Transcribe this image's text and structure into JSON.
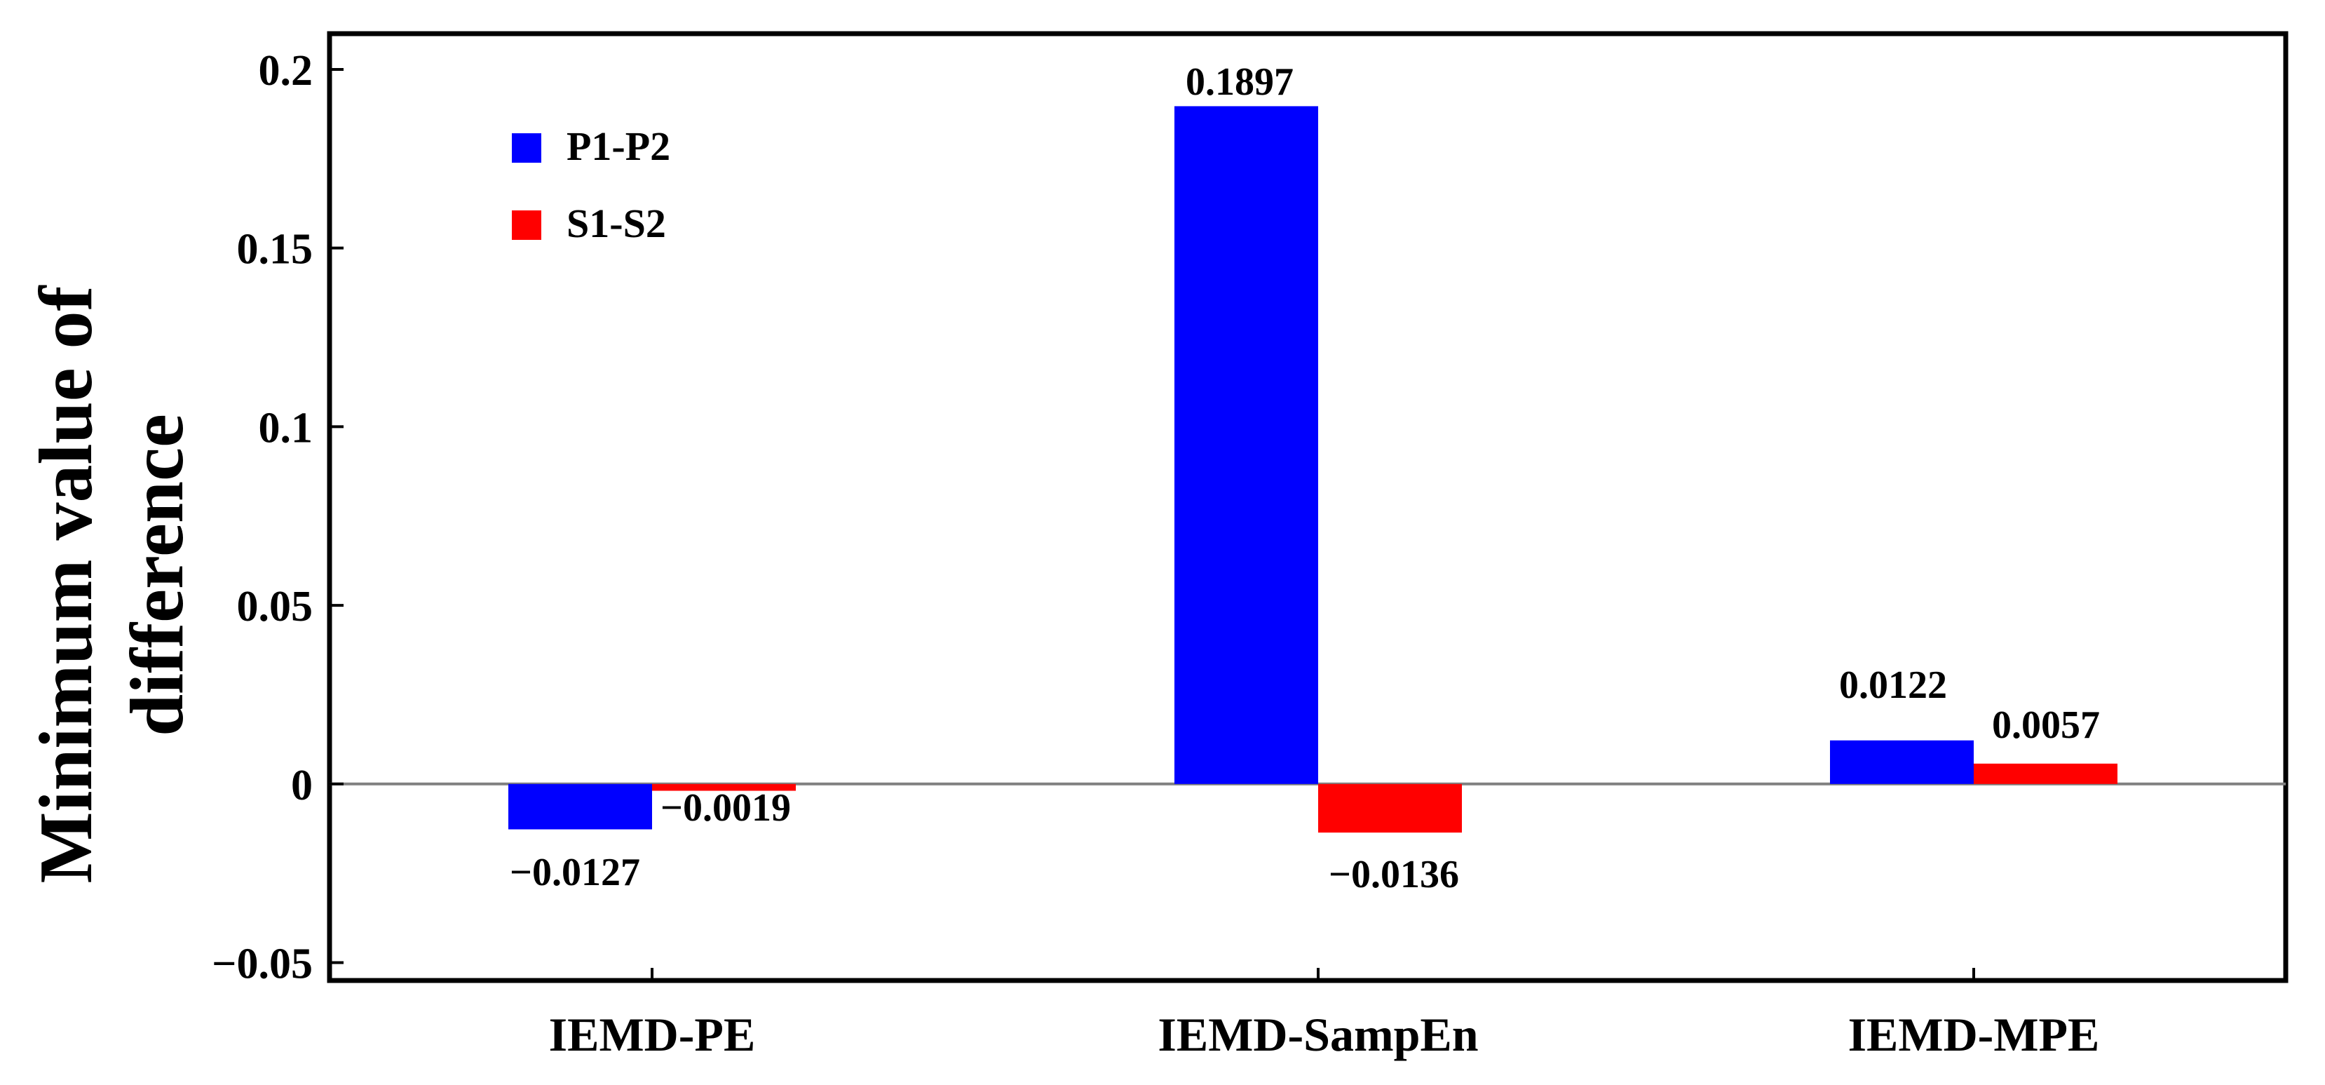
{
  "chart_data": {
    "type": "bar",
    "title": "",
    "xlabel": "",
    "ylabel": "Minimum value of difference",
    "ylabel_lines": [
      "Minimum value of",
      "difference"
    ],
    "categories": [
      "IEMD-PE",
      "IEMD-SampEn",
      "IEMD-MPE"
    ],
    "series": [
      {
        "name": "P1-P2",
        "color": "#0000FF",
        "values": [
          -0.0127,
          0.1897,
          0.0122
        ],
        "labels": [
          "−0.0127",
          "0.1897",
          "0.0122"
        ]
      },
      {
        "name": "S1-S2",
        "color": "#FF0000",
        "values": [
          -0.0019,
          -0.0136,
          0.0057
        ],
        "labels": [
          "−0.0019",
          "−0.0136",
          "0.0057"
        ]
      }
    ],
    "ylim": [
      -0.055,
      0.21
    ],
    "y_ticks": [
      0.2,
      0.15,
      0.1,
      0.05,
      0,
      -0.05
    ],
    "y_tick_labels": [
      "0.2",
      "0.15",
      "0.1",
      "0.05",
      "0",
      "−0.05"
    ],
    "grid": false,
    "zero_line": true,
    "legend_position": "top-left"
  }
}
